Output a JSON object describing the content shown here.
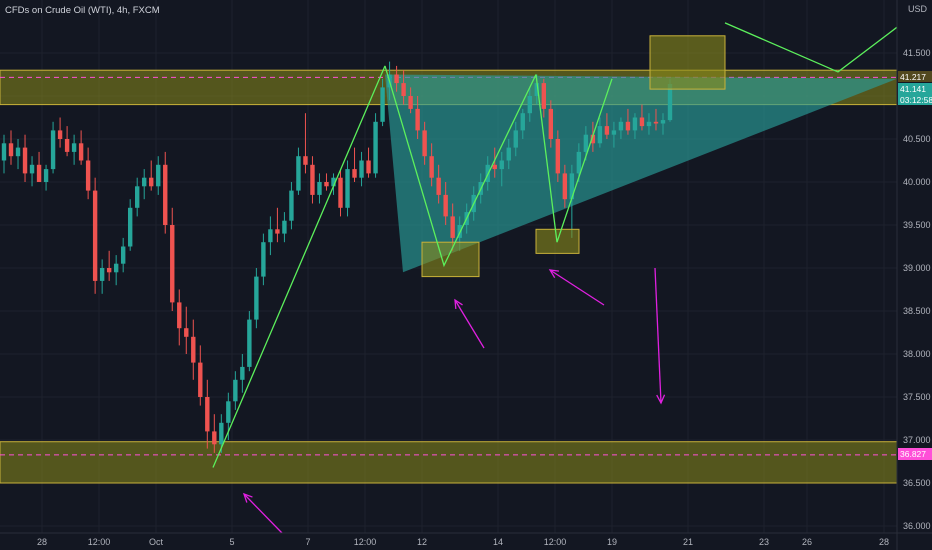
{
  "header": {
    "title": "CFDs on Crude Oil (WTI), 4h, FXCM",
    "currency": "USD"
  },
  "price_tags": {
    "upper_level": "41.217",
    "last_price": "41.141",
    "countdown": "03:12:58",
    "lower_level": "36.827"
  },
  "colors": {
    "background": "#131722",
    "up_candle": "#26a69a",
    "down_candle": "#ef5350",
    "zone_fill": "#8a8a1a",
    "zone_border": "#c9b23a",
    "triangle_fill": "#2a9d9a",
    "trend_lines": "#5cf05c",
    "arrows": "#e020e0",
    "dashed_levels": "#ff4fd8",
    "last_price_tag": "#26a69a"
  },
  "chart_data": {
    "type": "candlestick",
    "price_axis": {
      "min": 36.0,
      "max": 42.0,
      "ticks": [
        "41.500",
        "41.000",
        "40.500",
        "40.000",
        "39.500",
        "39.000",
        "38.500",
        "38.000",
        "37.500",
        "37.000",
        "36.500",
        "36.000"
      ]
    },
    "time_axis_labels": [
      "28",
      "12:00",
      "Oct",
      "5",
      "7",
      "12:00",
      "12",
      "14",
      "12:00",
      "19",
      "21",
      "23",
      "26",
      "28"
    ],
    "candles_ohlc": [
      [
        40.25,
        40.55,
        40.1,
        40.45
      ],
      [
        40.45,
        40.6,
        40.2,
        40.3
      ],
      [
        40.3,
        40.5,
        40.15,
        40.4
      ],
      [
        40.4,
        40.55,
        40.0,
        40.1
      ],
      [
        40.1,
        40.3,
        39.95,
        40.2
      ],
      [
        40.2,
        40.35,
        40.05,
        40.0
      ],
      [
        40.0,
        40.2,
        39.9,
        40.15
      ],
      [
        40.15,
        40.7,
        40.1,
        40.6
      ],
      [
        40.6,
        40.75,
        40.4,
        40.5
      ],
      [
        40.5,
        40.65,
        40.3,
        40.35
      ],
      [
        40.35,
        40.55,
        40.2,
        40.45
      ],
      [
        40.45,
        40.6,
        40.2,
        40.25
      ],
      [
        40.25,
        40.4,
        39.8,
        39.9
      ],
      [
        39.9,
        40.05,
        38.7,
        38.85
      ],
      [
        38.85,
        39.1,
        38.7,
        39.0
      ],
      [
        39.0,
        39.2,
        38.85,
        38.95
      ],
      [
        38.95,
        39.15,
        38.8,
        39.05
      ],
      [
        39.05,
        39.35,
        38.95,
        39.25
      ],
      [
        39.25,
        39.8,
        39.2,
        39.7
      ],
      [
        39.7,
        40.05,
        39.6,
        39.95
      ],
      [
        39.95,
        40.15,
        39.8,
        40.05
      ],
      [
        40.05,
        40.25,
        39.9,
        39.95
      ],
      [
        39.95,
        40.3,
        39.85,
        40.2
      ],
      [
        40.2,
        40.35,
        39.4,
        39.5
      ],
      [
        39.5,
        39.7,
        38.5,
        38.6
      ],
      [
        38.6,
        38.75,
        38.1,
        38.3
      ],
      [
        38.3,
        38.55,
        38.0,
        38.2
      ],
      [
        38.2,
        38.4,
        37.7,
        37.9
      ],
      [
        37.9,
        38.1,
        37.4,
        37.5
      ],
      [
        37.5,
        37.7,
        36.9,
        37.1
      ],
      [
        37.1,
        37.3,
        36.85,
        36.95
      ],
      [
        36.95,
        37.3,
        36.85,
        37.2
      ],
      [
        37.2,
        37.55,
        37.0,
        37.45
      ],
      [
        37.45,
        37.8,
        37.35,
        37.7
      ],
      [
        37.7,
        38.0,
        37.55,
        37.85
      ],
      [
        37.85,
        38.5,
        37.8,
        38.4
      ],
      [
        38.4,
        39.0,
        38.3,
        38.9
      ],
      [
        38.9,
        39.4,
        38.8,
        39.3
      ],
      [
        39.3,
        39.6,
        39.15,
        39.45
      ],
      [
        39.45,
        39.7,
        39.3,
        39.4
      ],
      [
        39.4,
        39.65,
        39.3,
        39.55
      ],
      [
        39.55,
        40.0,
        39.45,
        39.9
      ],
      [
        39.9,
        40.4,
        39.85,
        40.3
      ],
      [
        40.3,
        40.8,
        40.1,
        40.2
      ],
      [
        40.2,
        40.3,
        39.75,
        39.85
      ],
      [
        39.85,
        40.1,
        39.75,
        40.0
      ],
      [
        40.0,
        40.1,
        39.9,
        39.95
      ],
      [
        39.95,
        40.1,
        39.85,
        40.05
      ],
      [
        40.05,
        40.15,
        39.6,
        39.7
      ],
      [
        39.7,
        40.25,
        39.6,
        40.15
      ],
      [
        40.15,
        40.4,
        40.0,
        40.05
      ],
      [
        40.05,
        40.35,
        39.95,
        40.25
      ],
      [
        40.25,
        40.4,
        40.05,
        40.1
      ],
      [
        40.1,
        40.8,
        40.05,
        40.7
      ],
      [
        40.7,
        41.2,
        40.65,
        41.1
      ],
      [
        41.1,
        41.4,
        40.95,
        41.25
      ],
      [
        41.25,
        41.35,
        41.05,
        41.15
      ],
      [
        41.15,
        41.3,
        40.9,
        41.0
      ],
      [
        41.0,
        41.1,
        40.8,
        40.85
      ],
      [
        40.85,
        41.0,
        40.5,
        40.6
      ],
      [
        40.6,
        40.7,
        40.2,
        40.3
      ],
      [
        40.3,
        40.45,
        39.95,
        40.05
      ],
      [
        40.05,
        40.2,
        39.75,
        39.85
      ],
      [
        39.85,
        40.0,
        39.5,
        39.6
      ],
      [
        39.6,
        39.75,
        39.2,
        39.35
      ],
      [
        39.35,
        39.6,
        39.2,
        39.5
      ],
      [
        39.5,
        39.75,
        39.4,
        39.65
      ],
      [
        39.65,
        39.95,
        39.55,
        39.85
      ],
      [
        39.85,
        40.1,
        39.75,
        40.0
      ],
      [
        40.0,
        40.3,
        39.9,
        40.2
      ],
      [
        40.2,
        40.4,
        40.05,
        40.15
      ],
      [
        40.15,
        40.35,
        39.95,
        40.25
      ],
      [
        40.25,
        40.5,
        40.15,
        40.4
      ],
      [
        40.4,
        40.7,
        40.3,
        40.6
      ],
      [
        40.6,
        40.85,
        40.5,
        40.8
      ],
      [
        40.8,
        41.1,
        40.7,
        41.0
      ],
      [
        41.0,
        41.25,
        40.9,
        41.15
      ],
      [
        41.15,
        41.2,
        40.75,
        40.85
      ],
      [
        40.85,
        40.95,
        40.4,
        40.5
      ],
      [
        40.5,
        40.6,
        40.0,
        40.1
      ],
      [
        40.1,
        40.2,
        39.7,
        39.8
      ],
      [
        39.8,
        40.2,
        39.35,
        40.1
      ],
      [
        40.1,
        40.45,
        40.0,
        40.35
      ],
      [
        40.35,
        40.65,
        40.25,
        40.55
      ],
      [
        40.55,
        40.7,
        40.35,
        40.45
      ],
      [
        40.45,
        40.75,
        40.4,
        40.65
      ],
      [
        40.65,
        40.8,
        40.5,
        40.55
      ],
      [
        40.55,
        40.7,
        40.4,
        40.6
      ],
      [
        40.6,
        40.75,
        40.5,
        40.7
      ],
      [
        40.7,
        40.85,
        40.55,
        40.6
      ],
      [
        40.6,
        40.8,
        40.5,
        40.75
      ],
      [
        40.75,
        40.9,
        40.6,
        40.65
      ],
      [
        40.65,
        40.8,
        40.55,
        40.7
      ],
      [
        40.7,
        40.85,
        40.6,
        40.68
      ],
      [
        40.68,
        40.8,
        40.55,
        40.72
      ],
      [
        40.72,
        41.2,
        40.7,
        41.14
      ]
    ],
    "zones": [
      {
        "type": "resistance",
        "from": 40.9,
        "to": 41.3
      },
      {
        "type": "support",
        "from": 36.5,
        "to": 36.98
      }
    ],
    "dashed_levels": [
      41.217,
      36.827
    ]
  }
}
